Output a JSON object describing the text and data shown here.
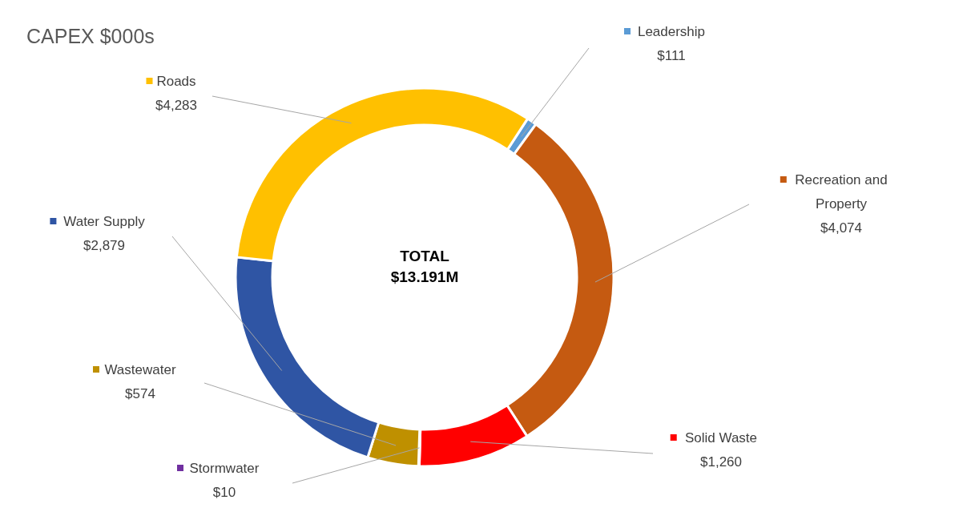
{
  "chart_data": {
    "type": "donut",
    "title": "CAPEX $000s",
    "categories": [
      "Leadership",
      "Recreation and Property",
      "Solid Waste",
      "Stormwater",
      "Wastewater",
      "Water Supply",
      "Roads"
    ],
    "values": [
      111,
      4074,
      1260,
      10,
      574,
      2879,
      4283
    ],
    "value_labels": [
      "$111",
      "$4,074",
      "$1,260",
      "$10",
      "$574",
      "$2,879",
      "$4,283"
    ],
    "colors": [
      "#5b9bd5",
      "#c55a11",
      "#ff0000",
      "#7030a0",
      "#bf9000",
      "#2f55a4",
      "#ffc000"
    ],
    "annotations": [
      "TOTAL",
      "$13.191M"
    ],
    "legend": "right"
  }
}
